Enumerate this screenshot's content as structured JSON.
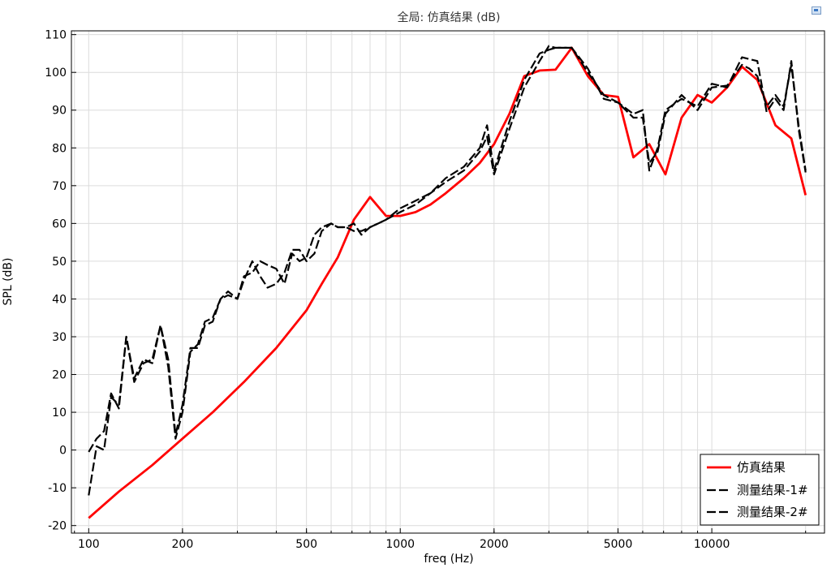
{
  "chart_data": {
    "type": "line",
    "title": "全局: 仿真结果 (dB)",
    "xlabel": "freq (Hz)",
    "ylabel": "SPL (dB)",
    "xscale": "log",
    "xlim": [
      88,
      23000
    ],
    "ylim": [
      -22,
      111
    ],
    "xticks": [
      100,
      200,
      500,
      1000,
      2000,
      5000,
      10000
    ],
    "xtick_labels": [
      "100",
      "200",
      "500",
      "1000",
      "2000",
      "5000",
      "10000"
    ],
    "yticks": [
      -20,
      -10,
      0,
      10,
      20,
      30,
      40,
      50,
      60,
      70,
      80,
      90,
      100,
      110
    ],
    "ytick_labels": [
      "-20",
      "-10",
      "0",
      "10",
      "20",
      "30",
      "40",
      "50",
      "60",
      "70",
      "80",
      "90",
      "100",
      "110"
    ],
    "grid": true,
    "legend_position": "bottom-right",
    "series": [
      {
        "name": "仿真结果",
        "color": "#ff0000",
        "style": "solid",
        "x": [
          100,
          125,
          160,
          200,
          250,
          315,
          400,
          500,
          560,
          630,
          710,
          800,
          900,
          1000,
          1120,
          1250,
          1400,
          1600,
          1800,
          2000,
          2240,
          2500,
          2800,
          3150,
          3550,
          4000,
          4500,
          5000,
          5600,
          6300,
          7100,
          8000,
          9000,
          10000,
          11200,
          12500,
          14000,
          16000,
          18000,
          20000
        ],
        "y": [
          -18,
          -11,
          -4,
          3,
          10,
          18,
          27,
          37,
          44,
          51,
          61,
          67,
          62,
          62,
          63,
          65,
          68,
          72,
          76,
          81,
          89,
          99,
          100.5,
          100.7,
          106.5,
          99,
          94,
          93.5,
          77.5,
          81,
          73,
          88,
          94,
          92,
          96,
          101.5,
          98,
          86,
          82.5,
          67.5
        ]
      },
      {
        "name": "测量结果-1#",
        "color": "#000000",
        "style": "dashed",
        "x": [
          100,
          106,
          112,
          118,
          125,
          132,
          140,
          150,
          160,
          170,
          180,
          190,
          200,
          212,
          224,
          236,
          250,
          265,
          280,
          300,
          315,
          335,
          355,
          375,
          400,
          425,
          450,
          475,
          500,
          530,
          560,
          600,
          630,
          670,
          710,
          750,
          800,
          850,
          900,
          1000,
          1120,
          1250,
          1400,
          1600,
          1800,
          1900,
          2000,
          2240,
          2500,
          2800,
          3000,
          3150,
          3550,
          4000,
          4500,
          5000,
          5600,
          6000,
          6300,
          6700,
          7100,
          8000,
          9000,
          10000,
          11200,
          12500,
          13200,
          14000,
          15000,
          16000,
          17000,
          18000,
          19000,
          20000
        ],
        "y": [
          -12,
          1,
          0,
          14,
          12,
          30,
          19,
          24,
          23,
          33,
          22,
          3,
          10,
          26,
          28,
          34,
          35,
          40,
          41,
          40,
          46,
          47,
          50,
          49,
          48,
          44,
          52,
          50,
          51,
          57,
          59,
          60,
          59,
          59,
          58,
          58,
          59,
          60,
          61,
          64,
          66,
          68,
          72,
          75,
          80,
          86,
          74,
          87,
          98,
          105,
          106,
          106.5,
          106.5,
          101,
          93,
          92,
          89,
          90,
          74,
          80,
          90,
          93,
          91,
          97,
          96,
          104,
          103.5,
          103,
          89.5,
          93,
          90,
          103,
          85,
          73.5
        ]
      },
      {
        "name": "测量结果-2#",
        "color": "#000000",
        "style": "dashed",
        "x": [
          100,
          106,
          112,
          118,
          125,
          132,
          140,
          150,
          160,
          170,
          180,
          190,
          200,
          212,
          224,
          236,
          250,
          265,
          280,
          300,
          315,
          335,
          355,
          375,
          400,
          425,
          450,
          475,
          500,
          530,
          560,
          600,
          630,
          670,
          710,
          750,
          800,
          850,
          900,
          1000,
          1120,
          1250,
          1400,
          1600,
          1800,
          1900,
          2000,
          2240,
          2500,
          2800,
          3000,
          3150,
          3550,
          4000,
          4500,
          5000,
          5600,
          6000,
          6300,
          6700,
          7100,
          8000,
          9000,
          10000,
          11200,
          12500,
          13200,
          14000,
          15000,
          16000,
          17000,
          18000,
          19000,
          20000
        ],
        "y": [
          -0.5,
          3,
          5,
          15,
          11,
          30,
          18,
          23,
          24,
          33,
          24,
          4,
          12,
          27,
          27,
          33,
          34,
          40,
          42,
          40,
          45,
          50,
          46,
          43,
          44,
          47,
          53,
          53,
          50,
          52,
          58,
          60,
          59,
          59,
          60,
          57,
          59,
          60,
          61,
          63,
          65,
          68,
          71,
          74,
          79,
          83,
          73,
          85,
          96,
          103,
          107,
          106.5,
          106.5,
          100,
          94,
          92,
          88,
          88,
          76,
          79,
          89,
          94,
          90,
          96,
          96.5,
          102,
          101,
          99,
          91,
          94,
          91,
          102,
          86,
          74
        ]
      }
    ]
  }
}
